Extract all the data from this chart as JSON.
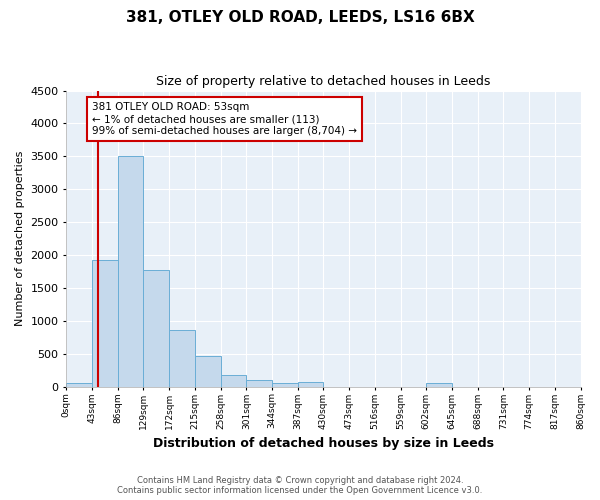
{
  "title": "381, OTLEY OLD ROAD, LEEDS, LS16 6BX",
  "subtitle": "Size of property relative to detached houses in Leeds",
  "xlabel": "Distribution of detached houses by size in Leeds",
  "ylabel": "Number of detached properties",
  "bar_color": "#c5d9ec",
  "bar_edge_color": "#6aaed6",
  "bin_edges": [
    0,
    43,
    86,
    129,
    172,
    215,
    258,
    301,
    344,
    387,
    430,
    473,
    516,
    559,
    602,
    645,
    688,
    731,
    774,
    817,
    860
  ],
  "bar_heights": [
    50,
    1920,
    3500,
    1780,
    860,
    460,
    175,
    100,
    55,
    65,
    0,
    0,
    0,
    0,
    55,
    0,
    0,
    0,
    0,
    0
  ],
  "tick_labels": [
    "0sqm",
    "43sqm",
    "86sqm",
    "129sqm",
    "172sqm",
    "215sqm",
    "258sqm",
    "301sqm",
    "344sqm",
    "387sqm",
    "430sqm",
    "473sqm",
    "516sqm",
    "559sqm",
    "602sqm",
    "645sqm",
    "688sqm",
    "731sqm",
    "774sqm",
    "817sqm",
    "860sqm"
  ],
  "ylim": [
    0,
    4500
  ],
  "yticks": [
    0,
    500,
    1000,
    1500,
    2000,
    2500,
    3000,
    3500,
    4000,
    4500
  ],
  "vline_x": 53,
  "vline_color": "#cc0000",
  "annotation_text": "381 OTLEY OLD ROAD: 53sqm\n← 1% of detached houses are smaller (113)\n99% of semi-detached houses are larger (8,704) →",
  "annotation_box_color": "#ffffff",
  "annotation_box_edge": "#cc0000",
  "footer_line1": "Contains HM Land Registry data © Crown copyright and database right 2024.",
  "footer_line2": "Contains public sector information licensed under the Open Government Licence v3.0.",
  "fig_bg_color": "#ffffff",
  "plot_bg_color": "#e8f0f8"
}
